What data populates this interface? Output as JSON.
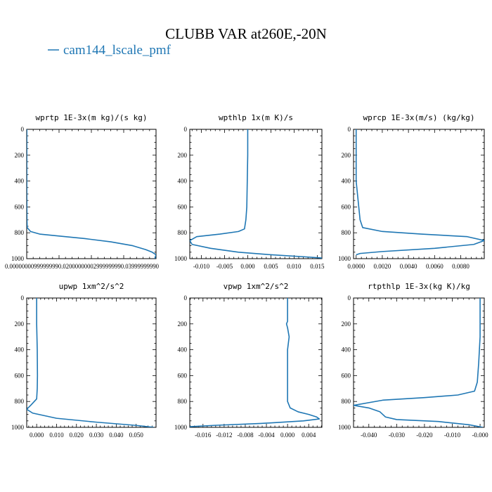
{
  "page": {
    "title": "CLUBB VAR at260E,-20N",
    "legend": {
      "label": "cam144_lscale_pmf",
      "color": "#1f77b4"
    }
  },
  "chart_data": [
    {
      "type": "line",
      "title": "wprtp  1E-3x(m kg)/(s kg)",
      "xlim": [
        0,
        1
      ],
      "ylim": [
        1000,
        0
      ],
      "xticks": [],
      "xtick_text": "0.00000000999999990.02000000002999999990.03999999990",
      "yticks": [
        0,
        200,
        400,
        600,
        800,
        1000
      ],
      "series": [
        {
          "name": "cam144_lscale_pmf",
          "color": "#1f77b4",
          "x": [
            0.001,
            0.001,
            0.001,
            0.002,
            0.004,
            0.03,
            0.1,
            0.25,
            0.45,
            0.65,
            0.82,
            0.92,
            0.97,
            1.0,
            0.99
          ],
          "y": [
            0,
            200,
            500,
            700,
            760,
            790,
            810,
            825,
            845,
            870,
            900,
            930,
            950,
            970,
            1000
          ]
        }
      ]
    },
    {
      "type": "line",
      "title": "wpthlp  1x(m K)/s",
      "xlim": [
        -0.0125,
        0.016
      ],
      "ylim": [
        1000,
        0
      ],
      "xticks": [
        -0.01,
        -0.005,
        0.0,
        0.005,
        0.01,
        0.015
      ],
      "xtick_labels": [
        "-0.010",
        "-0.005",
        "0.000",
        "0.005",
        "0.010",
        "0.015"
      ],
      "yticks": [
        0,
        200,
        400,
        600,
        800,
        1000
      ],
      "series": [
        {
          "name": "cam144_lscale_pmf",
          "color": "#1f77b4",
          "x": [
            0.0,
            0.0,
            -0.0001,
            -0.0002,
            -0.0004,
            -0.0007,
            -0.002,
            -0.006,
            -0.011,
            -0.0125,
            -0.012,
            -0.008,
            -0.002,
            0.005,
            0.012,
            0.016
          ],
          "y": [
            0,
            200,
            400,
            600,
            700,
            770,
            790,
            810,
            830,
            860,
            890,
            920,
            950,
            970,
            985,
            995
          ]
        }
      ]
    },
    {
      "type": "line",
      "title": "wprcp  1E-3x(m/s) (kg/kg)",
      "xlim": [
        -0.0002,
        0.0098
      ],
      "ylim": [
        1000,
        0
      ],
      "xticks": [
        0.0,
        0.002,
        0.004,
        0.006,
        0.008
      ],
      "xtick_labels": [
        "0.0000",
        "0.0020",
        "0.0040",
        "0.0060",
        "0.0080"
      ],
      "yticks": [
        0,
        200,
        400,
        600,
        800,
        1000
      ],
      "series": [
        {
          "name": "cam144_lscale_pmf",
          "color": "#1f77b4",
          "x": [
            0.0,
            0.0,
            0.0001,
            0.0002,
            0.0003,
            0.0005,
            0.002,
            0.005,
            0.0085,
            0.0098,
            0.009,
            0.006,
            0.002,
            0.0003,
            0.0
          ],
          "y": [
            0,
            400,
            500,
            600,
            700,
            760,
            790,
            810,
            830,
            860,
            890,
            920,
            945,
            960,
            970
          ]
        }
      ]
    },
    {
      "type": "line",
      "title": "upwp  1xm^2/s^2",
      "xlim": [
        -0.005,
        0.06
      ],
      "ylim": [
        1000,
        0
      ],
      "xticks": [
        0.0,
        0.01,
        0.02,
        0.03,
        0.04,
        0.05
      ],
      "xtick_labels": [
        "0.000",
        "0.010",
        "0.020",
        "0.030",
        "0.040",
        "0.050"
      ],
      "yticks": [
        0,
        200,
        400,
        600,
        800,
        1000
      ],
      "series": [
        {
          "name": "cam144_lscale_pmf",
          "color": "#1f77b4",
          "x": [
            0.0,
            0.0,
            0.0003,
            0.0004,
            0.0003,
            0.0,
            -0.003,
            -0.005,
            -0.002,
            0.01,
            0.03,
            0.05,
            0.059
          ],
          "y": [
            0,
            200,
            400,
            600,
            700,
            780,
            830,
            860,
            890,
            930,
            960,
            985,
            1000
          ]
        }
      ]
    },
    {
      "type": "line",
      "title": "vpwp  1xm^2/s^2",
      "xlim": [
        -0.0185,
        0.0065
      ],
      "ylim": [
        1000,
        0
      ],
      "xticks": [
        -0.016,
        -0.012,
        -0.008,
        -0.004,
        0.0,
        0.004
      ],
      "xtick_labels": [
        "-0.016",
        "-0.012",
        "-0.008",
        "-0.004",
        "0.000",
        "0.004"
      ],
      "yticks": [
        0,
        200,
        400,
        600,
        800,
        1000
      ],
      "series": [
        {
          "name": "cam144_lscale_pmf",
          "color": "#1f77b4",
          "x": [
            0.0,
            0.0,
            -0.0002,
            0.0,
            0.0003,
            0.0,
            0.0,
            0.0,
            0.0005,
            0.002,
            0.004,
            0.0055,
            0.006,
            0.003,
            -0.005,
            -0.014,
            -0.0185
          ],
          "y": [
            0,
            180,
            200,
            230,
            300,
            400,
            600,
            800,
            850,
            880,
            900,
            920,
            935,
            950,
            970,
            985,
            995
          ]
        }
      ]
    },
    {
      "type": "line",
      "title": "rtpthlp  1E-3x(kg K)/kg",
      "xlim": [
        -0.0455,
        0.0015
      ],
      "ylim": [
        1000,
        0
      ],
      "xticks": [
        -0.04,
        -0.03,
        -0.02,
        -0.01,
        0.0
      ],
      "xtick_labels": [
        "-0.040",
        "-0.030",
        "-0.020",
        "-0.010",
        "-0.000"
      ],
      "yticks": [
        0,
        200,
        400,
        600,
        800,
        1000
      ],
      "series": [
        {
          "name": "cam144_lscale_pmf",
          "color": "#1f77b4",
          "x": [
            0.0,
            0.0,
            -0.0005,
            -0.001,
            -0.002,
            -0.008,
            -0.02,
            -0.035,
            -0.0455,
            -0.04,
            -0.036,
            -0.034,
            -0.03,
            -0.015,
            -0.004,
            0.001
          ],
          "y": [
            0,
            300,
            500,
            650,
            720,
            750,
            770,
            790,
            830,
            850,
            880,
            920,
            940,
            955,
            980,
            1000
          ]
        }
      ]
    }
  ]
}
